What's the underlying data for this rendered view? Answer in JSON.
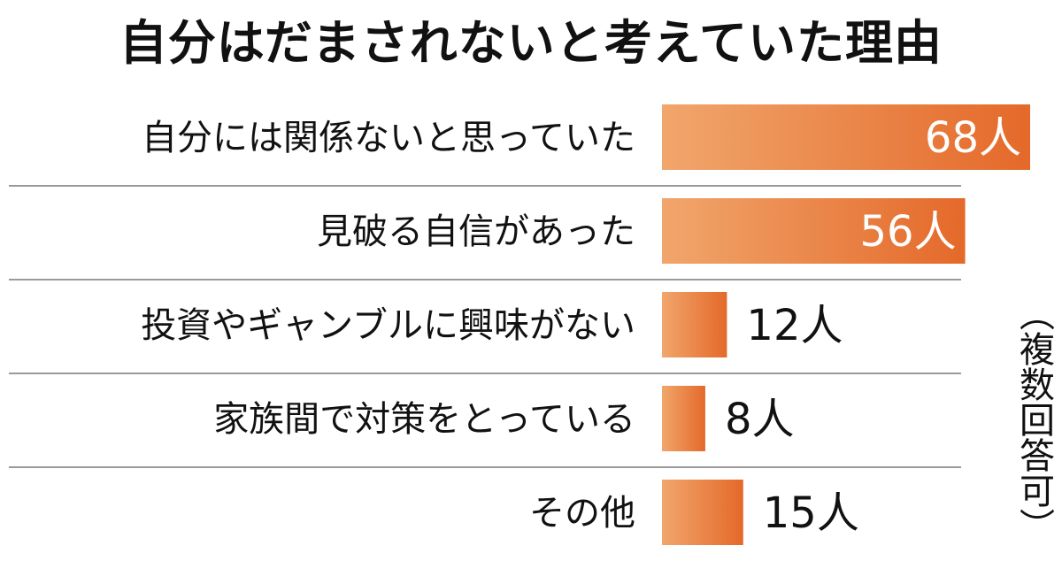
{
  "chart_data": {
    "type": "bar",
    "orientation": "horizontal",
    "title": "自分はだまされないと考えていた理由",
    "categories": [
      "自分には関係ないと思っていた",
      "見破る自信があった",
      "投資やギャンブルに興味がない",
      "家族間で対策をとっている",
      "その他"
    ],
    "values": [
      68,
      56,
      12,
      8,
      15
    ],
    "value_labels": [
      "68人",
      "56人",
      "12人",
      "8人",
      "15人"
    ],
    "unit": "人",
    "note": "（複数回答可）",
    "xlim": [
      0,
      68
    ],
    "grid": false,
    "bar_color_light": "#f1a66c",
    "bar_color_dark": "#e4692a"
  }
}
